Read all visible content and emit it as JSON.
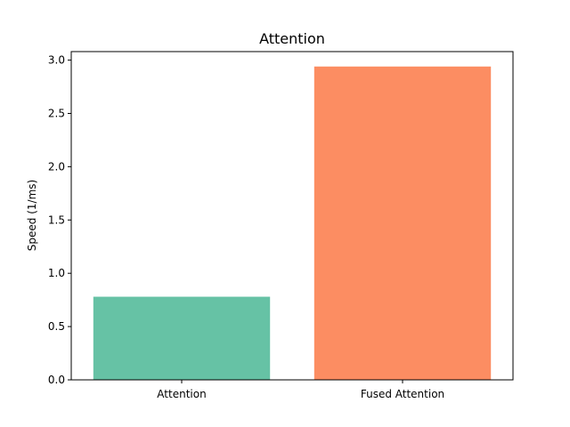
{
  "chart_data": {
    "type": "bar",
    "title": "Attention",
    "xlabel": "",
    "ylabel": "Speed (1/ms)",
    "categories": [
      "Attention",
      "Fused Attention"
    ],
    "values": [
      0.78,
      2.94
    ],
    "colors": [
      "#66c2a5",
      "#fc8d62"
    ],
    "ylim": [
      0,
      3.08
    ],
    "yticks": [
      0.0,
      0.5,
      1.0,
      1.5,
      2.0,
      2.5,
      3.0
    ],
    "ytick_labels": [
      "0.0",
      "0.5",
      "1.0",
      "1.5",
      "2.0",
      "2.5",
      "3.0"
    ],
    "grid": false,
    "legend": "none"
  }
}
